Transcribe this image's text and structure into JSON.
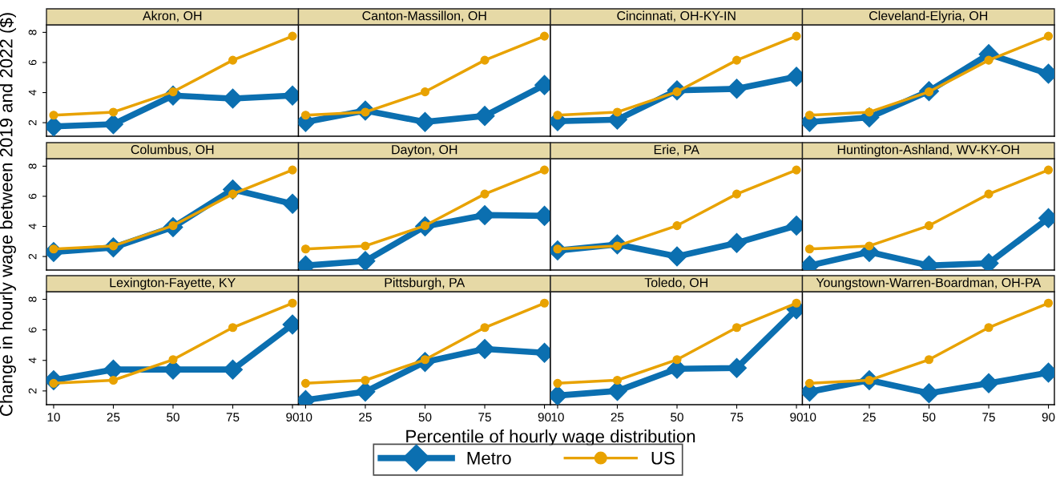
{
  "chart_data": [
    {
      "type": "line",
      "title": "Akron, OH",
      "legend": "bottom",
      "categories": [
        "10",
        "25",
        "50",
        "75",
        "90"
      ],
      "ylim": [
        1.1,
        8.5
      ],
      "yticks": [
        2,
        4,
        6,
        8
      ],
      "tick_labels": "y",
      "series": [
        {
          "name": "Metro",
          "color": "#0b6fb0",
          "marker": "diamond",
          "values": [
            1.75,
            1.9,
            3.8,
            3.6,
            3.8
          ]
        },
        {
          "name": "US",
          "color": "#e8a200",
          "marker": "circle",
          "values": [
            2.5,
            2.7,
            4.05,
            6.15,
            7.75
          ]
        }
      ]
    },
    {
      "type": "line",
      "title": "Canton-Massillon, OH",
      "categories": [
        "10",
        "25",
        "50",
        "75",
        "90"
      ],
      "ylim": [
        1.1,
        8.5
      ],
      "yticks": [
        2,
        4,
        6,
        8
      ],
      "tick_labels": false,
      "series": [
        {
          "name": "Metro",
          "color": "#0b6fb0",
          "marker": "diamond",
          "values": [
            2.05,
            2.8,
            2.05,
            2.45,
            4.5
          ]
        },
        {
          "name": "US",
          "color": "#e8a200",
          "marker": "circle",
          "values": [
            2.5,
            2.7,
            4.05,
            6.15,
            7.75
          ]
        }
      ]
    },
    {
      "type": "line",
      "title": "Cincinnati, OH-KY-IN",
      "categories": [
        "10",
        "25",
        "50",
        "75",
        "90"
      ],
      "ylim": [
        1.1,
        8.5
      ],
      "yticks": [
        2,
        4,
        6,
        8
      ],
      "tick_labels": false,
      "series": [
        {
          "name": "Metro",
          "color": "#0b6fb0",
          "marker": "diamond",
          "values": [
            2.1,
            2.2,
            4.15,
            4.25,
            5.05
          ]
        },
        {
          "name": "US",
          "color": "#e8a200",
          "marker": "circle",
          "values": [
            2.5,
            2.7,
            4.05,
            6.15,
            7.75
          ]
        }
      ]
    },
    {
      "type": "line",
      "title": "Cleveland-Elyria, OH",
      "categories": [
        "10",
        "25",
        "50",
        "75",
        "90"
      ],
      "ylim": [
        1.1,
        8.5
      ],
      "yticks": [
        2,
        4,
        6,
        8
      ],
      "tick_labels": false,
      "series": [
        {
          "name": "Metro",
          "color": "#0b6fb0",
          "marker": "diamond",
          "values": [
            2.05,
            2.35,
            4.1,
            6.55,
            5.25
          ]
        },
        {
          "name": "US",
          "color": "#e8a200",
          "marker": "circle",
          "values": [
            2.5,
            2.7,
            4.05,
            6.15,
            7.75
          ]
        }
      ]
    },
    {
      "type": "line",
      "title": "Columbus, OH",
      "ylabel": "Change in hourly wage between 2019 and 2022 ($)",
      "categories": [
        "10",
        "25",
        "50",
        "75",
        "90"
      ],
      "ylim": [
        1.1,
        8.5
      ],
      "yticks": [
        2,
        4,
        6,
        8
      ],
      "tick_labels": "y",
      "series": [
        {
          "name": "Metro",
          "color": "#0b6fb0",
          "marker": "diamond",
          "values": [
            2.3,
            2.6,
            3.95,
            6.45,
            5.5
          ]
        },
        {
          "name": "US",
          "color": "#e8a200",
          "marker": "circle",
          "values": [
            2.5,
            2.7,
            4.05,
            6.15,
            7.75
          ]
        }
      ]
    },
    {
      "type": "line",
      "title": "Dayton, OH",
      "categories": [
        "10",
        "25",
        "50",
        "75",
        "90"
      ],
      "ylim": [
        1.1,
        8.5
      ],
      "yticks": [
        2,
        4,
        6,
        8
      ],
      "tick_labels": false,
      "series": [
        {
          "name": "Metro",
          "color": "#0b6fb0",
          "marker": "diamond",
          "values": [
            1.4,
            1.7,
            4.0,
            4.75,
            4.7
          ]
        },
        {
          "name": "US",
          "color": "#e8a200",
          "marker": "circle",
          "values": [
            2.5,
            2.7,
            4.05,
            6.15,
            7.75
          ]
        }
      ]
    },
    {
      "type": "line",
      "title": "Erie, PA",
      "categories": [
        "10",
        "25",
        "50",
        "75",
        "90"
      ],
      "ylim": [
        1.1,
        8.5
      ],
      "yticks": [
        2,
        4,
        6,
        8
      ],
      "tick_labels": false,
      "series": [
        {
          "name": "Metro",
          "color": "#0b6fb0",
          "marker": "diamond",
          "values": [
            2.4,
            2.8,
            2.0,
            2.9,
            4.05
          ]
        },
        {
          "name": "US",
          "color": "#e8a200",
          "marker": "circle",
          "values": [
            2.5,
            2.7,
            4.05,
            6.15,
            7.75
          ]
        }
      ]
    },
    {
      "type": "line",
      "title": "Huntington-Ashland, WV-KY-OH",
      "categories": [
        "10",
        "25",
        "50",
        "75",
        "90"
      ],
      "ylim": [
        1.1,
        8.5
      ],
      "yticks": [
        2,
        4,
        6,
        8
      ],
      "tick_labels": false,
      "series": [
        {
          "name": "Metro",
          "color": "#0b6fb0",
          "marker": "diamond",
          "values": [
            1.4,
            2.3,
            1.4,
            1.55,
            4.55
          ]
        },
        {
          "name": "US",
          "color": "#e8a200",
          "marker": "circle",
          "values": [
            2.5,
            2.7,
            4.05,
            6.15,
            7.75
          ]
        }
      ]
    },
    {
      "type": "line",
      "title": "Lexington-Fayette, KY",
      "categories": [
        "10",
        "25",
        "50",
        "75",
        "90"
      ],
      "ylim": [
        1.1,
        8.5
      ],
      "yticks": [
        2,
        4,
        6,
        8
      ],
      "series": [
        {
          "name": "Metro",
          "color": "#0b6fb0",
          "marker": "diamond",
          "values": [
            2.7,
            3.4,
            3.4,
            3.4,
            6.35
          ]
        },
        {
          "name": "US",
          "color": "#e8a200",
          "marker": "circle",
          "values": [
            2.5,
            2.7,
            4.05,
            6.15,
            7.75
          ]
        }
      ]
    },
    {
      "type": "line",
      "title": "Pittsburgh, PA",
      "xlabel": "Percentile of hourly wage distribution",
      "categories": [
        "10",
        "25",
        "50",
        "75",
        "90"
      ],
      "ylim": [
        1.1,
        8.5
      ],
      "yticks": [
        2,
        4,
        6,
        8
      ],
      "tick_labels": "x",
      "series": [
        {
          "name": "Metro",
          "color": "#0b6fb0",
          "marker": "diamond",
          "values": [
            1.4,
            1.95,
            3.9,
            4.75,
            4.5
          ]
        },
        {
          "name": "US",
          "color": "#e8a200",
          "marker": "circle",
          "values": [
            2.5,
            2.7,
            4.05,
            6.15,
            7.75
          ]
        }
      ]
    },
    {
      "type": "line",
      "title": "Toledo, OH",
      "categories": [
        "10",
        "25",
        "50",
        "75",
        "90"
      ],
      "ylim": [
        1.1,
        8.5
      ],
      "yticks": [
        2,
        4,
        6,
        8
      ],
      "tick_labels": "x",
      "series": [
        {
          "name": "Metro",
          "color": "#0b6fb0",
          "marker": "diamond",
          "values": [
            1.7,
            2.0,
            3.45,
            3.5,
            7.35
          ]
        },
        {
          "name": "US",
          "color": "#e8a200",
          "marker": "circle",
          "values": [
            2.5,
            2.7,
            4.05,
            6.15,
            7.75
          ]
        }
      ]
    },
    {
      "type": "line",
      "title": "Youngstown-Warren-Boardman, OH-PA",
      "categories": [
        "10",
        "25",
        "50",
        "75",
        "90"
      ],
      "ylim": [
        1.1,
        8.5
      ],
      "yticks": [
        2,
        4,
        6,
        8
      ],
      "tick_labels": "x",
      "series": [
        {
          "name": "Metro",
          "color": "#0b6fb0",
          "marker": "diamond",
          "values": [
            1.95,
            2.7,
            1.85,
            2.5,
            3.2
          ]
        },
        {
          "name": "US",
          "color": "#e8a200",
          "marker": "circle",
          "values": [
            2.5,
            2.7,
            4.05,
            6.15,
            7.75
          ]
        }
      ]
    }
  ]
}
